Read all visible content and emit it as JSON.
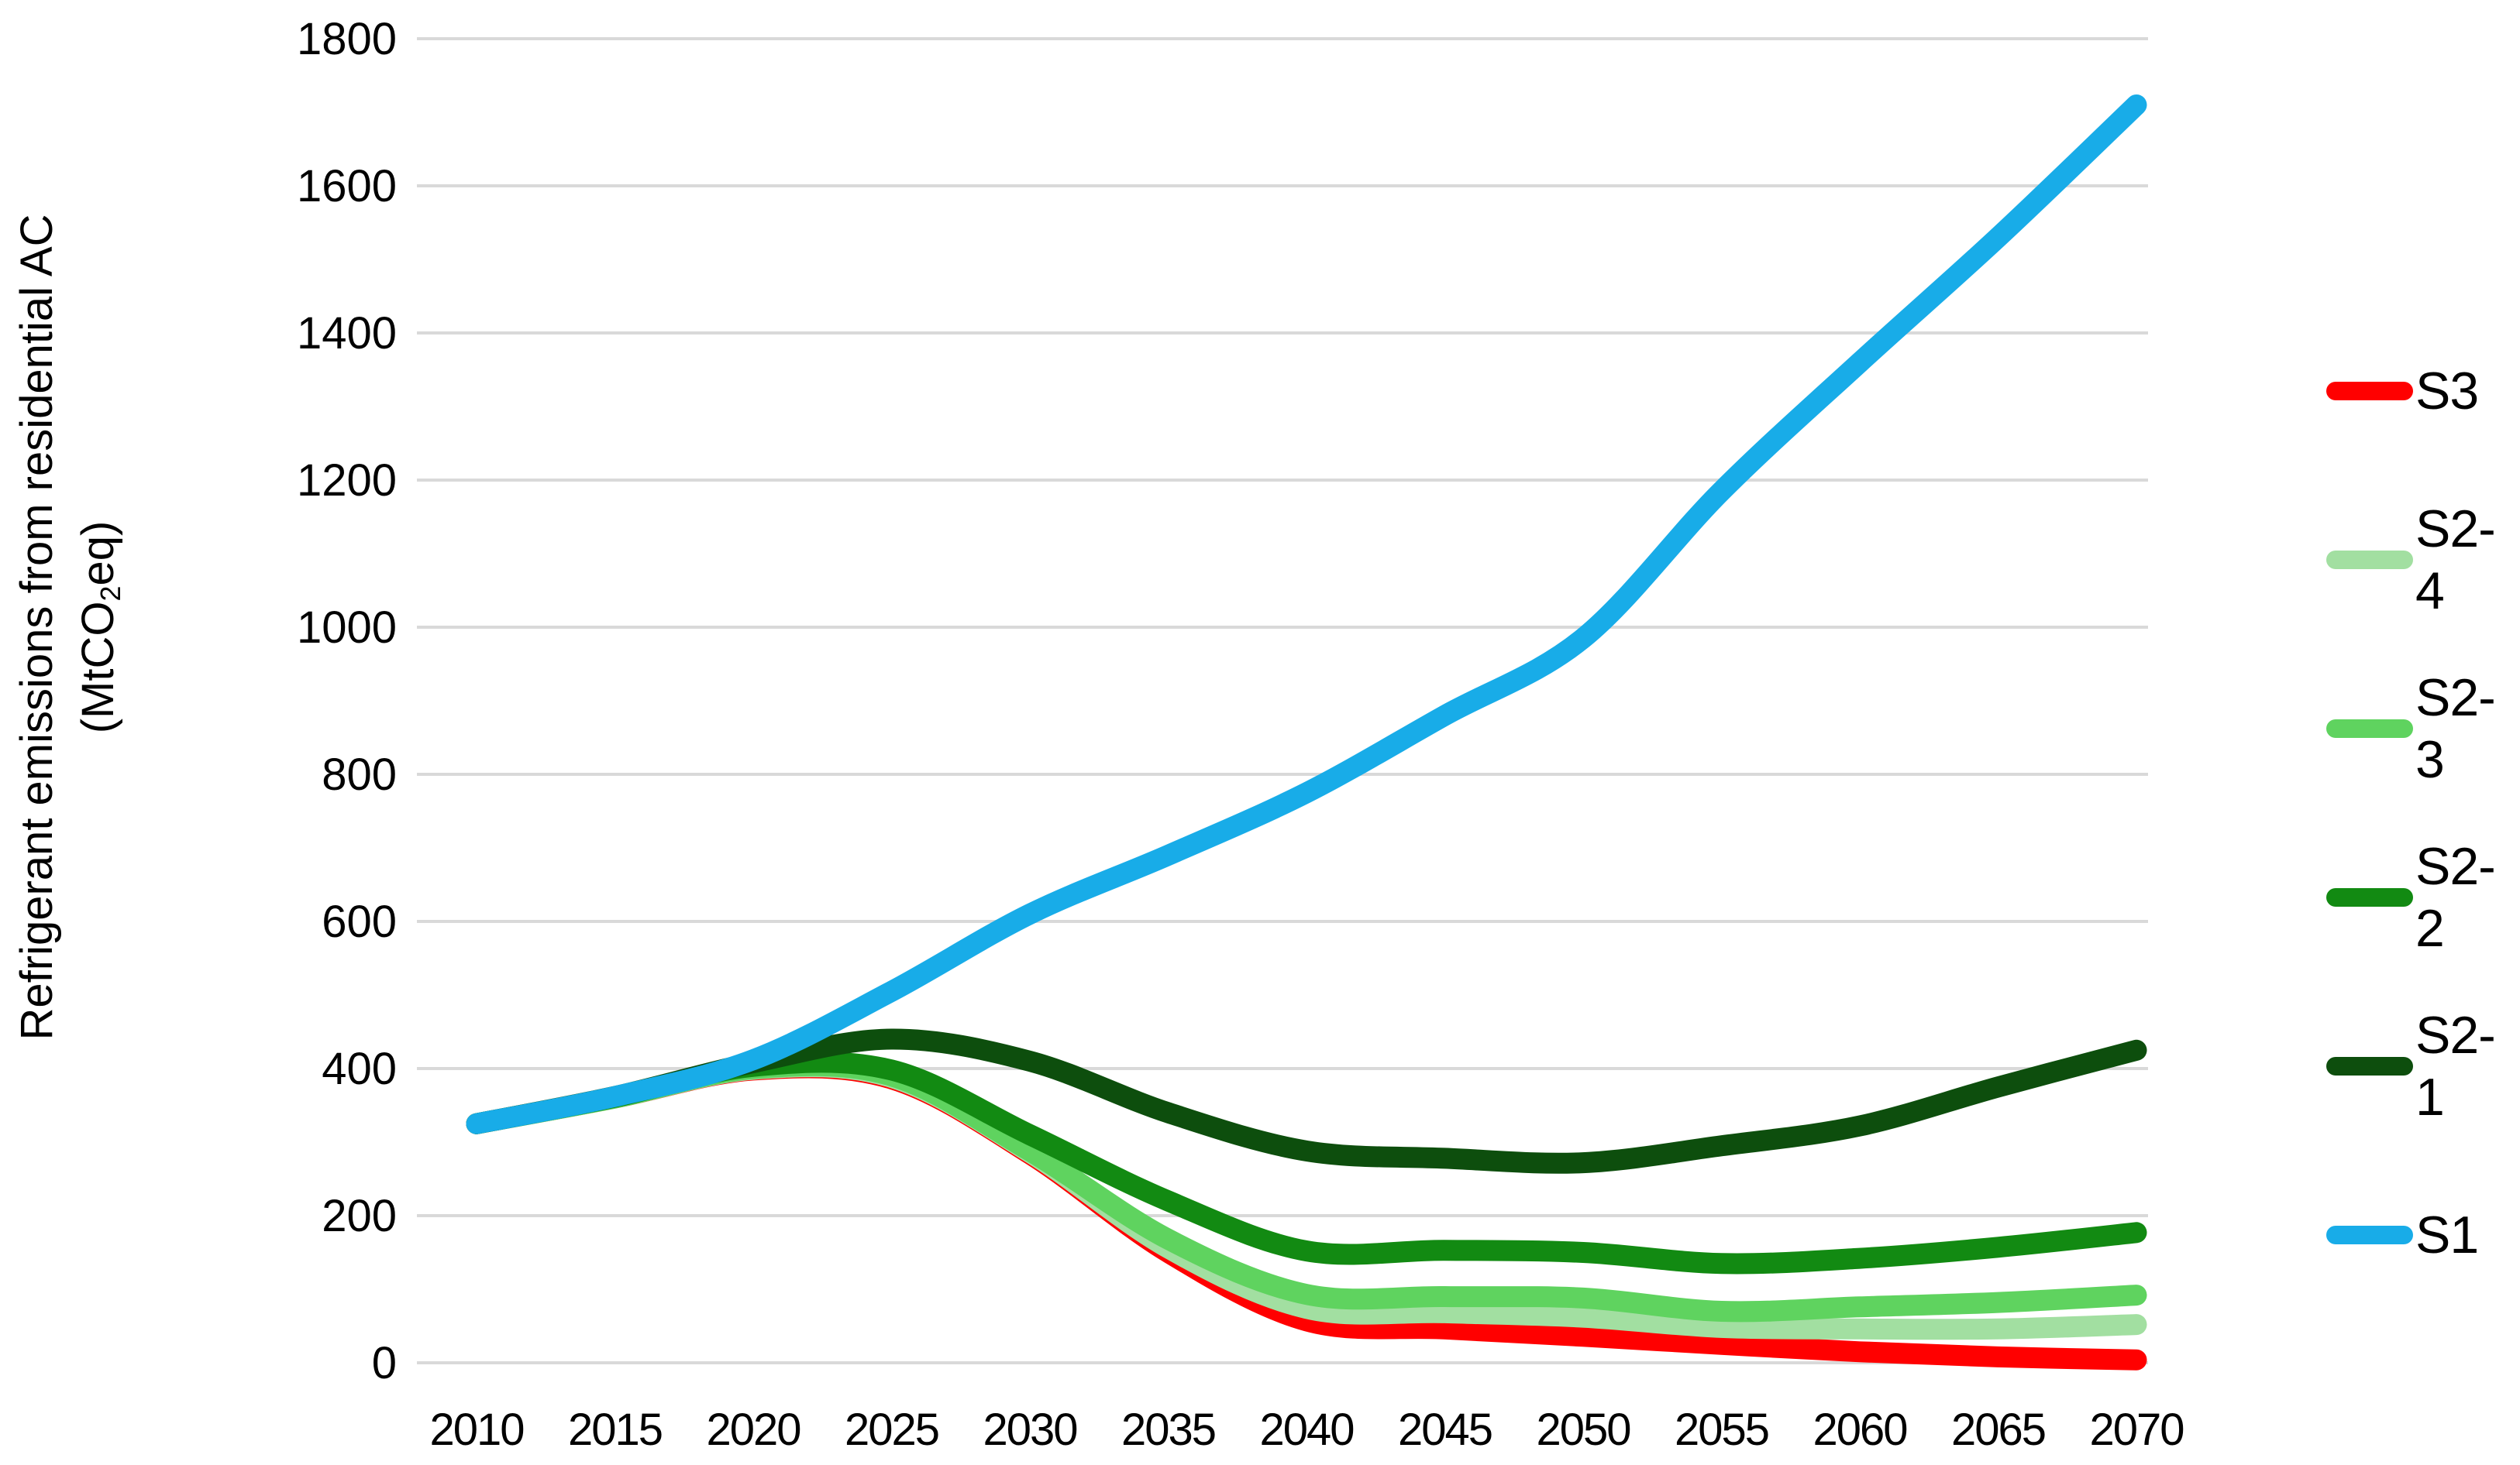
{
  "chart_data": {
    "type": "line",
    "title": "",
    "xlabel": "",
    "ylabel": "Refrigerant emissions from residential AC",
    "yunit": {
      "pre": "(MtCO",
      "sub": "2",
      "post": "eq)"
    },
    "x": [
      2010,
      2015,
      2020,
      2025,
      2030,
      2035,
      2040,
      2045,
      2050,
      2055,
      2060,
      2065,
      2070
    ],
    "yticks": [
      0,
      200,
      400,
      600,
      800,
      1000,
      1200,
      1400,
      1600,
      1800
    ],
    "ylim": [
      0,
      1800
    ],
    "grid": true,
    "legend_position": "right",
    "series": [
      {
        "name": "S3",
        "color": "#FF0000",
        "values": [
          325,
          360,
          398,
          386,
          284,
          150,
          57,
          46,
          36,
          25,
          15,
          8,
          4
        ]
      },
      {
        "name": "S2-4",
        "color": "#A2DFA1",
        "values": [
          325,
          360,
          399,
          388,
          286,
          156,
          74,
          68,
          62,
          48,
          46,
          46,
          52
        ]
      },
      {
        "name": "S2-3",
        "color": "#5FD35F",
        "values": [
          325,
          360,
          400,
          390,
          288,
          168,
          93,
          90,
          88,
          70,
          76,
          82,
          92
        ]
      },
      {
        "name": "S2-2",
        "color": "#128A12",
        "values": [
          325,
          361,
          403,
          398,
          310,
          220,
          152,
          153,
          150,
          135,
          142,
          157,
          177
        ]
      },
      {
        "name": "S2-1",
        "color": "#0D4E0D",
        "values": [
          325,
          362,
          408,
          440,
          410,
          340,
          288,
          278,
          272,
          295,
          322,
          375,
          425
        ]
      },
      {
        "name": "S1",
        "color": "#18ACE8",
        "values": [
          325,
          362,
          412,
          505,
          610,
          690,
          775,
          880,
          985,
          1185,
          1360,
          1530,
          1710
        ]
      }
    ],
    "legend_order": [
      "S3",
      "S2-4",
      "S2-3",
      "S2-2",
      "S2-1",
      "S1"
    ],
    "draw_order": [
      "S3",
      "S2-4",
      "S2-3",
      "S2-2",
      "S2-1",
      "S1"
    ],
    "grid_color": "#D9D9D9"
  }
}
